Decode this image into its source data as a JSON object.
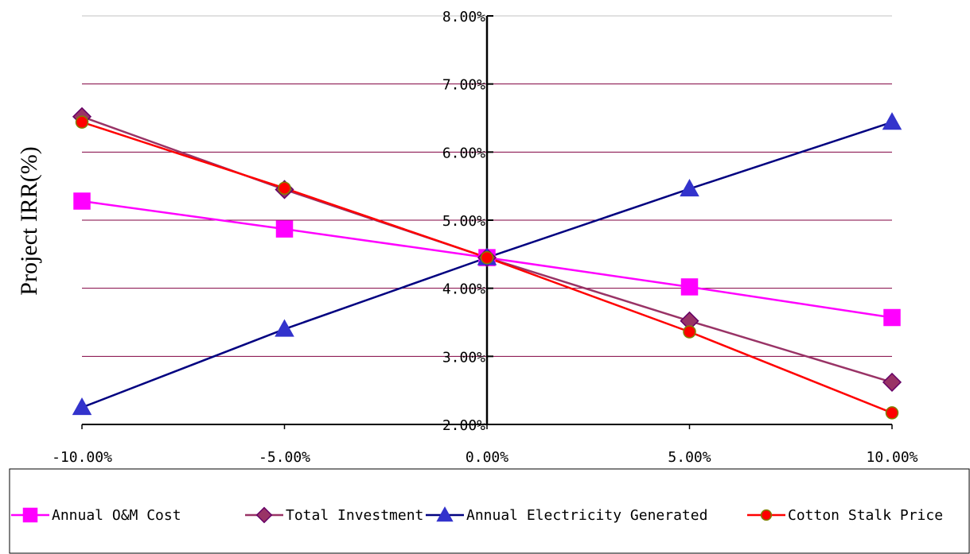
{
  "chart_data": {
    "type": "line",
    "title": "",
    "xlabel": "",
    "ylabel": "Project IRR(%)",
    "x": [
      -10,
      -5,
      0,
      5,
      10
    ],
    "x_tick_labels": [
      "-10.00%",
      "-5.00%",
      "0.00%",
      "5.00%",
      "10.00%"
    ],
    "y_tick_labels": [
      "2.00%",
      "3.00%",
      "4.00%",
      "5.00%",
      "6.00%",
      "7.00%",
      "8.00%"
    ],
    "y_ticks": [
      2,
      3,
      4,
      5,
      6,
      7,
      8
    ],
    "ylim": [
      2,
      8
    ],
    "xlim": [
      -10,
      10
    ],
    "grid": true,
    "legend_position": "bottom",
    "series": [
      {
        "name": "Annual O&M Cost",
        "values": [
          5.28,
          4.87,
          4.45,
          4.02,
          3.57
        ],
        "color": "#ff00ff",
        "marker": "square",
        "marker_fill": "#ff00ff",
        "marker_stroke": "#ff00ff"
      },
      {
        "name": "Total Investment",
        "values": [
          6.52,
          5.45,
          4.45,
          3.52,
          2.62
        ],
        "color": "#993366",
        "marker": "diamond",
        "marker_fill": "#993366",
        "marker_stroke": "#660066"
      },
      {
        "name": "Annual Electricity Generated",
        "values": [
          2.25,
          3.4,
          4.45,
          5.46,
          6.44
        ],
        "color": "#000080",
        "marker": "triangle",
        "marker_fill": "#3333cc",
        "marker_stroke": "#3333cc"
      },
      {
        "name": "Cotton Stalk Price",
        "values": [
          6.44,
          5.47,
          4.45,
          3.36,
          2.17
        ],
        "color": "#ff0000",
        "marker": "circle",
        "marker_fill": "#ff0000",
        "marker_stroke": "#808000"
      }
    ]
  }
}
